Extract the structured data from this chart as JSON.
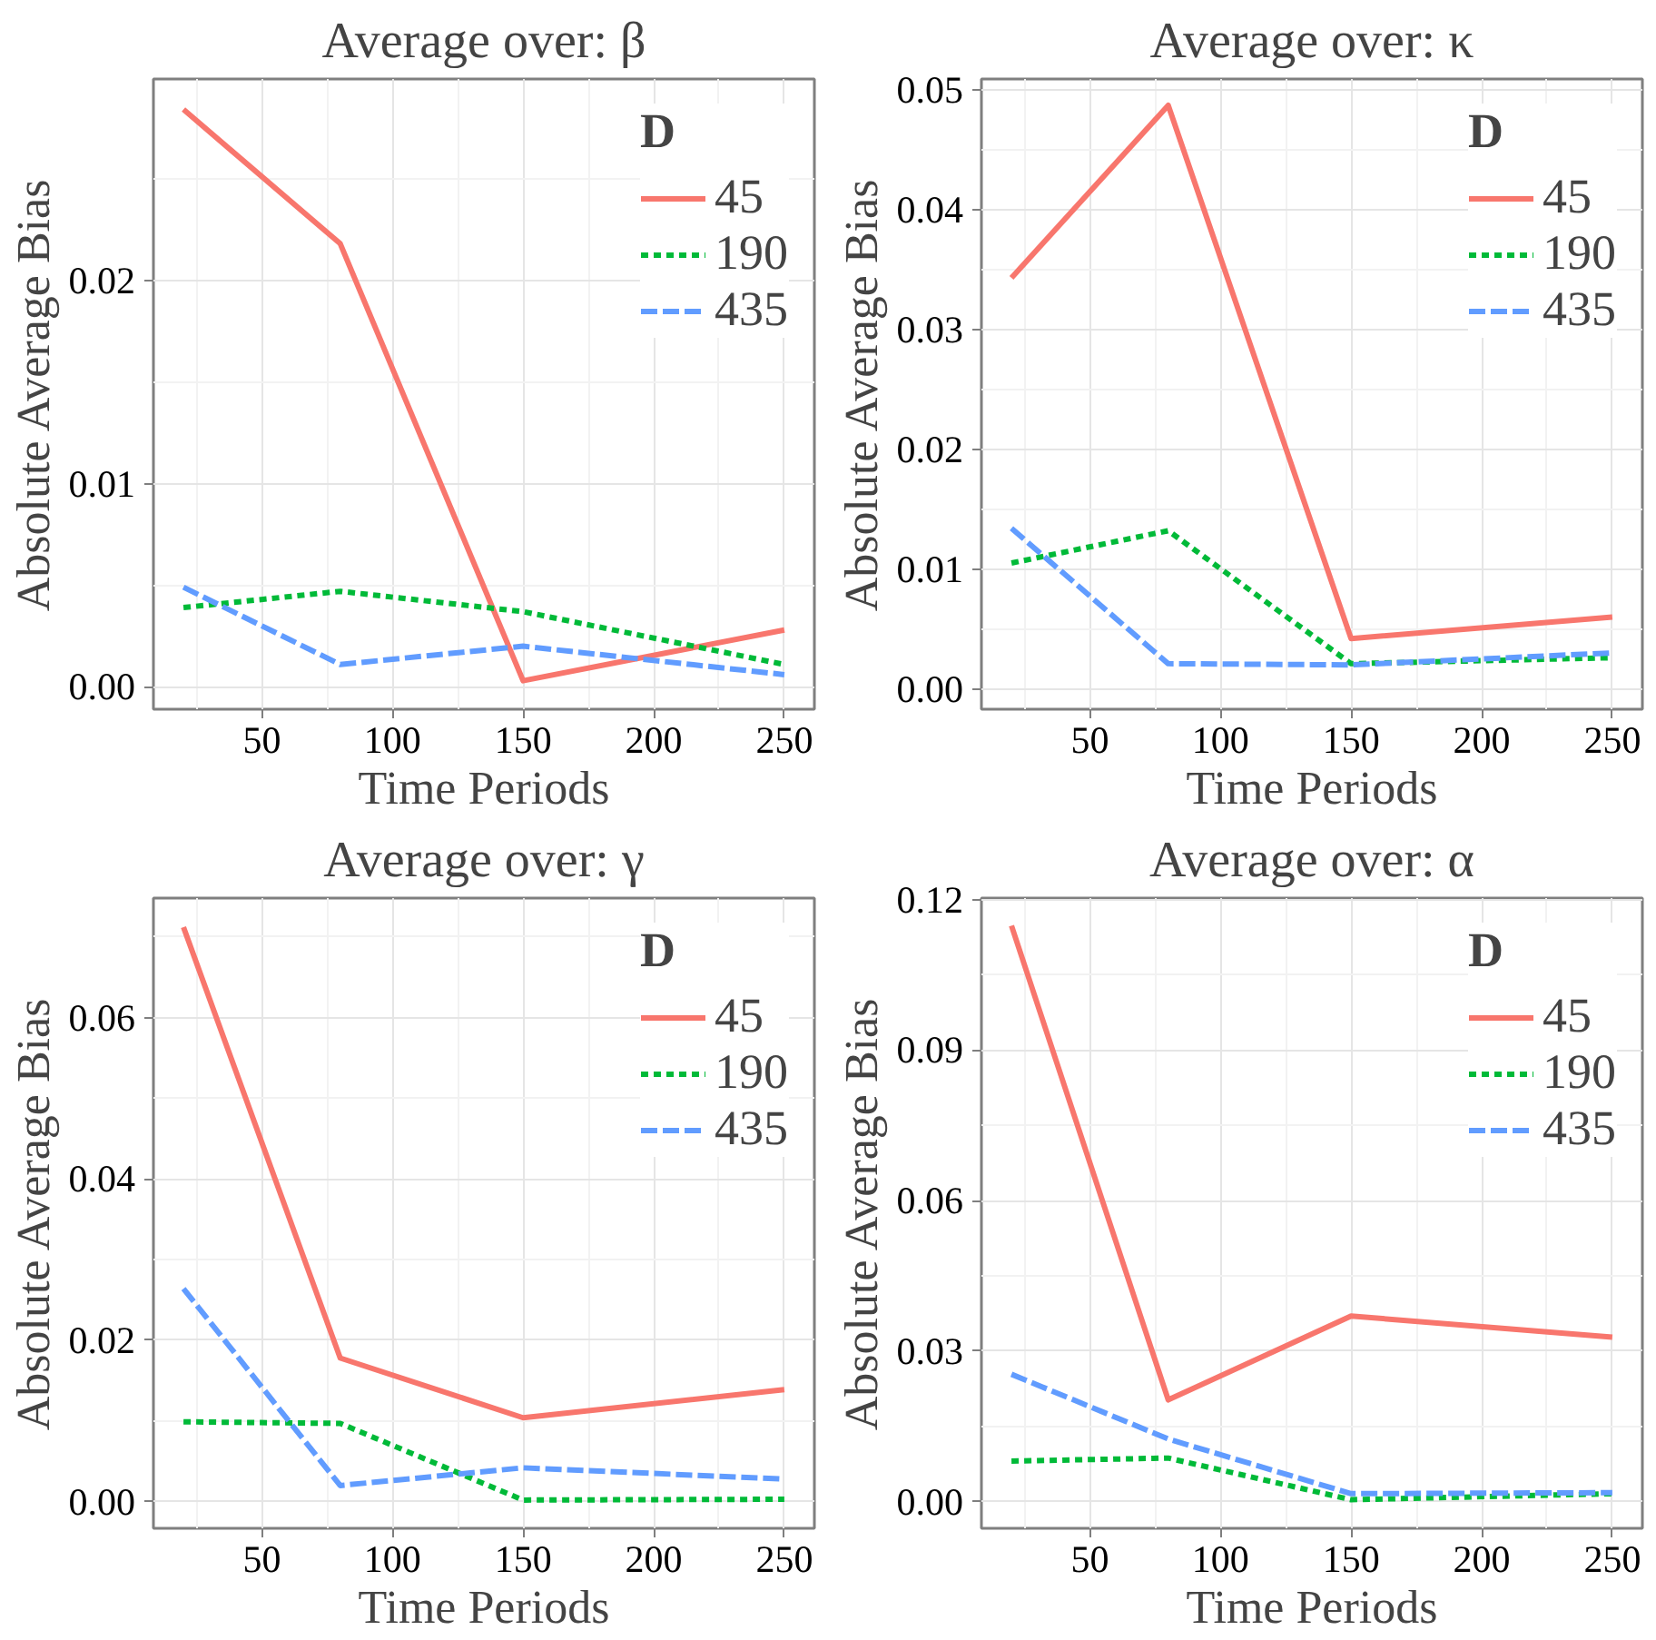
{
  "chart_data": [
    {
      "type": "line",
      "title": "Average over: β",
      "xlabel": "Time Periods",
      "ylabel": "Absolute Average Bias",
      "legend_title": "D",
      "legend": "top right",
      "grid": true,
      "x": [
        20,
        80,
        150,
        250
      ],
      "xlim": [
        8.5,
        261.5
      ],
      "xticks": [
        50,
        100,
        150,
        200,
        250
      ],
      "ylim": [
        -0.0011,
        0.0299
      ],
      "yticks": [
        {
          "value": 0,
          "label": "0.00"
        },
        {
          "value": 0.01,
          "label": "0.01"
        },
        {
          "value": 0.02,
          "label": "0.02"
        }
      ],
      "series": [
        {
          "name": "45",
          "color": "#f8766d",
          "line_style": "solid",
          "values": [
            0.0284,
            0.0218,
            0.0003,
            0.0028
          ]
        },
        {
          "name": "190",
          "color": "#00ba38",
          "line_style": "dotted",
          "values": [
            0.0039,
            0.0047,
            0.0037,
            0.0011
          ]
        },
        {
          "name": "435",
          "color": "#619cff",
          "line_style": "dashed",
          "values": [
            0.0049,
            0.0011,
            0.002,
            0.0006
          ]
        }
      ]
    },
    {
      "type": "line",
      "title": "Average over: κ",
      "xlabel": "Time Periods",
      "ylabel": "Absolute Average Bias",
      "legend_title": "D",
      "legend": "top right",
      "grid": true,
      "x": [
        20,
        80,
        150,
        250
      ],
      "xlim": [
        8.5,
        261.5
      ],
      "xticks": [
        50,
        100,
        150,
        200,
        250
      ],
      "ylim": [
        -0.0017,
        0.0509
      ],
      "yticks": [
        {
          "value": 0,
          "label": "0.00"
        },
        {
          "value": 0.01,
          "label": "0.01"
        },
        {
          "value": 0.02,
          "label": "0.02"
        },
        {
          "value": 0.03,
          "label": "0.03"
        },
        {
          "value": 0.04,
          "label": "0.04"
        },
        {
          "value": 0.05,
          "label": "0.05"
        }
      ],
      "series": [
        {
          "name": "45",
          "color": "#f8766d",
          "line_style": "solid",
          "values": [
            0.0343,
            0.0487,
            0.0042,
            0.006
          ]
        },
        {
          "name": "190",
          "color": "#00ba38",
          "line_style": "dotted",
          "values": [
            0.0105,
            0.0132,
            0.0021,
            0.0026
          ]
        },
        {
          "name": "435",
          "color": "#619cff",
          "line_style": "dashed",
          "values": [
            0.0134,
            0.0021,
            0.002,
            0.003
          ]
        }
      ]
    },
    {
      "type": "line",
      "title": "Average over: γ",
      "xlabel": "Time Periods",
      "ylabel": "Absolute Average Bias",
      "legend_title": "D",
      "legend": "top right",
      "grid": true,
      "x": [
        20,
        80,
        150,
        250
      ],
      "xlim": [
        8.5,
        261.5
      ],
      "xticks": [
        50,
        100,
        150,
        200,
        250
      ],
      "ylim": [
        -0.0033,
        0.0748
      ],
      "yticks": [
        {
          "value": 0,
          "label": "0.00"
        },
        {
          "value": 0.02,
          "label": "0.02"
        },
        {
          "value": 0.04,
          "label": "0.04"
        },
        {
          "value": 0.06,
          "label": "0.06"
        }
      ],
      "series": [
        {
          "name": "45",
          "color": "#f8766d",
          "line_style": "solid",
          "values": [
            0.0712,
            0.0178,
            0.0104,
            0.0139
          ]
        },
        {
          "name": "190",
          "color": "#00ba38",
          "line_style": "dotted",
          "values": [
            0.0099,
            0.0097,
            0.0002,
            0.0003
          ]
        },
        {
          "name": "435",
          "color": "#619cff",
          "line_style": "dashed",
          "values": [
            0.0264,
            0.002,
            0.0042,
            0.0028
          ]
        }
      ]
    },
    {
      "type": "line",
      "title": "Average over: α",
      "xlabel": "Time Periods",
      "ylabel": "Absolute Average Bias",
      "legend_title": "D",
      "legend": "top right",
      "grid": true,
      "x": [
        20,
        80,
        150,
        250
      ],
      "xlim": [
        8.5,
        261.5
      ],
      "xticks": [
        50,
        100,
        150,
        200,
        250
      ],
      "ylim": [
        -0.0053,
        0.1203
      ],
      "yticks": [
        {
          "value": 0,
          "label": "0.00"
        },
        {
          "value": 0.03,
          "label": "0.03"
        },
        {
          "value": 0.06,
          "label": "0.06"
        },
        {
          "value": 0.09,
          "label": "0.09"
        },
        {
          "value": 0.12,
          "label": "0.12"
        }
      ],
      "series": [
        {
          "name": "45",
          "color": "#f8766d",
          "line_style": "solid",
          "values": [
            0.1148,
            0.0203,
            0.037,
            0.0328
          ]
        },
        {
          "name": "190",
          "color": "#00ba38",
          "line_style": "dotted",
          "values": [
            0.0081,
            0.0087,
            0.0004,
            0.0016
          ]
        },
        {
          "name": "435",
          "color": "#619cff",
          "line_style": "dashed",
          "values": [
            0.0254,
            0.0125,
            0.0016,
            0.0018
          ]
        }
      ]
    }
  ]
}
